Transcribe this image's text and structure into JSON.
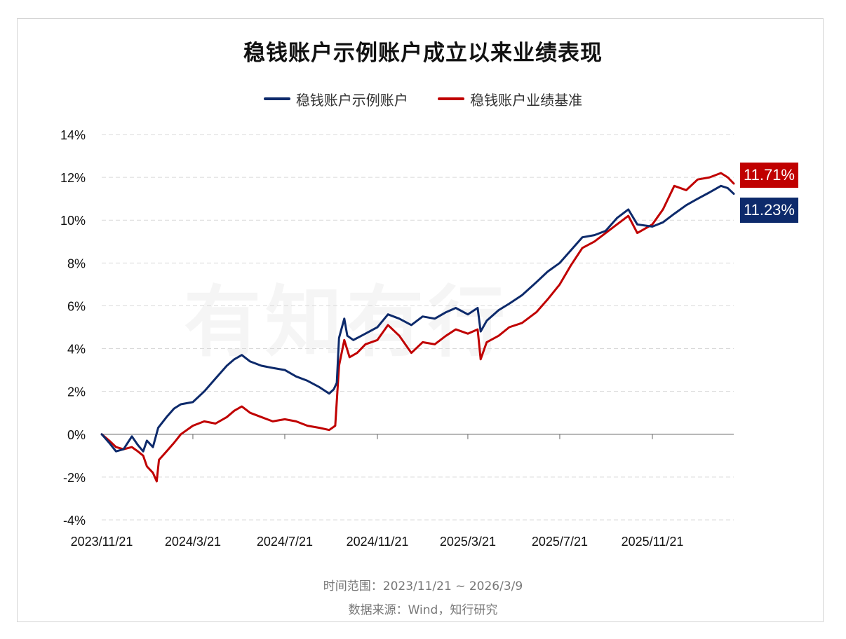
{
  "chart_data": {
    "type": "line",
    "title": "稳钱账户示例账户成立以来业绩表现",
    "xlabel": "",
    "ylabel": "",
    "ylim": [
      -4,
      14
    ],
    "yticks": [
      -4,
      -2,
      0,
      2,
      4,
      6,
      8,
      10,
      12,
      14
    ],
    "ytick_labels": [
      "-4%",
      "-2%",
      "0%",
      "2%",
      "4%",
      "6%",
      "8%",
      "10%",
      "12%",
      "14%"
    ],
    "xlim": [
      "2023-11-21",
      "2026-03-09"
    ],
    "xticks": [
      "2023-11-21",
      "2024-03-21",
      "2024-07-21",
      "2024-11-21",
      "2025-03-21",
      "2025-07-21",
      "2025-11-21"
    ],
    "xtick_labels": [
      "2023/11/21",
      "2024/3/21",
      "2024/7/21",
      "2024/11/21",
      "2025/3/21",
      "2025/7/21",
      "2025/11/21"
    ],
    "grid": "horizontal dashed",
    "legend_position": "top-center",
    "series": [
      {
        "name": "稳钱账户示例账户",
        "color": "#0d2a6b",
        "end_label": "11.23%",
        "points": [
          [
            "2023-11-21",
            0.0
          ],
          [
            "2023-12-01",
            -0.4
          ],
          [
            "2023-12-10",
            -0.8
          ],
          [
            "2023-12-20",
            -0.7
          ],
          [
            "2023-12-31",
            -0.1
          ],
          [
            "2024-01-08",
            -0.5
          ],
          [
            "2024-01-15",
            -0.8
          ],
          [
            "2024-01-20",
            -0.3
          ],
          [
            "2024-01-28",
            -0.6
          ],
          [
            "2024-02-04",
            0.3
          ],
          [
            "2024-02-15",
            0.8
          ],
          [
            "2024-02-25",
            1.2
          ],
          [
            "2024-03-05",
            1.4
          ],
          [
            "2024-03-21",
            1.5
          ],
          [
            "2024-04-05",
            2.0
          ],
          [
            "2024-04-20",
            2.6
          ],
          [
            "2024-05-05",
            3.2
          ],
          [
            "2024-05-15",
            3.5
          ],
          [
            "2024-05-25",
            3.7
          ],
          [
            "2024-06-05",
            3.4
          ],
          [
            "2024-06-20",
            3.2
          ],
          [
            "2024-07-05",
            3.1
          ],
          [
            "2024-07-21",
            3.0
          ],
          [
            "2024-08-05",
            2.7
          ],
          [
            "2024-08-20",
            2.5
          ],
          [
            "2024-09-05",
            2.2
          ],
          [
            "2024-09-18",
            1.9
          ],
          [
            "2024-09-24",
            2.1
          ],
          [
            "2024-09-28",
            2.4
          ],
          [
            "2024-10-01",
            4.5
          ],
          [
            "2024-10-08",
            5.4
          ],
          [
            "2024-10-12",
            4.6
          ],
          [
            "2024-10-20",
            4.4
          ],
          [
            "2024-11-05",
            4.7
          ],
          [
            "2024-11-21",
            5.0
          ],
          [
            "2024-12-05",
            5.6
          ],
          [
            "2024-12-20",
            5.4
          ],
          [
            "2025-01-05",
            5.1
          ],
          [
            "2025-01-20",
            5.5
          ],
          [
            "2025-02-05",
            5.4
          ],
          [
            "2025-02-20",
            5.7
          ],
          [
            "2025-03-05",
            5.9
          ],
          [
            "2025-03-21",
            5.6
          ],
          [
            "2025-04-03",
            5.9
          ],
          [
            "2025-04-07",
            4.8
          ],
          [
            "2025-04-15",
            5.3
          ],
          [
            "2025-05-01",
            5.8
          ],
          [
            "2025-05-15",
            6.1
          ],
          [
            "2025-06-01",
            6.5
          ],
          [
            "2025-06-20",
            7.1
          ],
          [
            "2025-07-05",
            7.6
          ],
          [
            "2025-07-21",
            8.0
          ],
          [
            "2025-08-05",
            8.6
          ],
          [
            "2025-08-20",
            9.2
          ],
          [
            "2025-09-05",
            9.3
          ],
          [
            "2025-09-20",
            9.5
          ],
          [
            "2025-10-05",
            10.1
          ],
          [
            "2025-10-20",
            10.5
          ],
          [
            "2025-11-01",
            9.8
          ],
          [
            "2025-11-21",
            9.7
          ],
          [
            "2025-12-05",
            9.9
          ],
          [
            "2025-12-20",
            10.3
          ],
          [
            "2026-01-05",
            10.7
          ],
          [
            "2026-01-20",
            11.0
          ],
          [
            "2026-02-05",
            11.3
          ],
          [
            "2026-02-20",
            11.6
          ],
          [
            "2026-03-01",
            11.5
          ],
          [
            "2026-03-09",
            11.23
          ]
        ]
      },
      {
        "name": "稳钱账户业绩基准",
        "color": "#c00000",
        "end_label": "11.71%",
        "points": [
          [
            "2023-11-21",
            0.0
          ],
          [
            "2023-12-01",
            -0.3
          ],
          [
            "2023-12-10",
            -0.6
          ],
          [
            "2023-12-20",
            -0.7
          ],
          [
            "2023-12-31",
            -0.6
          ],
          [
            "2024-01-08",
            -0.8
          ],
          [
            "2024-01-15",
            -1.0
          ],
          [
            "2024-01-20",
            -1.5
          ],
          [
            "2024-01-28",
            -1.8
          ],
          [
            "2024-02-02",
            -2.2
          ],
          [
            "2024-02-05",
            -1.2
          ],
          [
            "2024-02-15",
            -0.8
          ],
          [
            "2024-02-25",
            -0.4
          ],
          [
            "2024-03-05",
            0.0
          ],
          [
            "2024-03-21",
            0.4
          ],
          [
            "2024-04-05",
            0.6
          ],
          [
            "2024-04-20",
            0.5
          ],
          [
            "2024-05-05",
            0.8
          ],
          [
            "2024-05-15",
            1.1
          ],
          [
            "2024-05-25",
            1.3
          ],
          [
            "2024-06-05",
            1.0
          ],
          [
            "2024-06-20",
            0.8
          ],
          [
            "2024-07-05",
            0.6
          ],
          [
            "2024-07-21",
            0.7
          ],
          [
            "2024-08-05",
            0.6
          ],
          [
            "2024-08-20",
            0.4
          ],
          [
            "2024-09-05",
            0.3
          ],
          [
            "2024-09-18",
            0.2
          ],
          [
            "2024-09-26",
            0.4
          ],
          [
            "2024-10-01",
            3.2
          ],
          [
            "2024-10-08",
            4.4
          ],
          [
            "2024-10-15",
            3.6
          ],
          [
            "2024-10-25",
            3.8
          ],
          [
            "2024-11-05",
            4.2
          ],
          [
            "2024-11-21",
            4.4
          ],
          [
            "2024-12-05",
            5.1
          ],
          [
            "2024-12-20",
            4.6
          ],
          [
            "2025-01-05",
            3.8
          ],
          [
            "2025-01-20",
            4.3
          ],
          [
            "2025-02-05",
            4.2
          ],
          [
            "2025-02-20",
            4.6
          ],
          [
            "2025-03-05",
            4.9
          ],
          [
            "2025-03-21",
            4.7
          ],
          [
            "2025-04-03",
            4.9
          ],
          [
            "2025-04-07",
            3.5
          ],
          [
            "2025-04-15",
            4.3
          ],
          [
            "2025-05-01",
            4.6
          ],
          [
            "2025-05-15",
            5.0
          ],
          [
            "2025-06-01",
            5.2
          ],
          [
            "2025-06-20",
            5.7
          ],
          [
            "2025-07-05",
            6.3
          ],
          [
            "2025-07-21",
            7.0
          ],
          [
            "2025-08-05",
            7.9
          ],
          [
            "2025-08-20",
            8.7
          ],
          [
            "2025-09-05",
            9.0
          ],
          [
            "2025-09-20",
            9.4
          ],
          [
            "2025-10-05",
            9.8
          ],
          [
            "2025-10-20",
            10.2
          ],
          [
            "2025-11-01",
            9.4
          ],
          [
            "2025-11-21",
            9.8
          ],
          [
            "2025-12-05",
            10.5
          ],
          [
            "2025-12-20",
            11.6
          ],
          [
            "2026-01-05",
            11.4
          ],
          [
            "2026-01-20",
            11.9
          ],
          [
            "2026-02-05",
            12.0
          ],
          [
            "2026-02-20",
            12.2
          ],
          [
            "2026-03-01",
            12.0
          ],
          [
            "2026-03-09",
            11.71
          ]
        ]
      }
    ],
    "footnotes": [
      "时间范围：2023/11/21 ~ 2026/3/9",
      "数据来源：Wind，知行研究"
    ]
  },
  "watermark_text": "有知有行",
  "colors": {
    "navy": "#0d2a6b",
    "red": "#c00000",
    "grid": "#d9d9d9",
    "axis": "#7f7f7f"
  }
}
